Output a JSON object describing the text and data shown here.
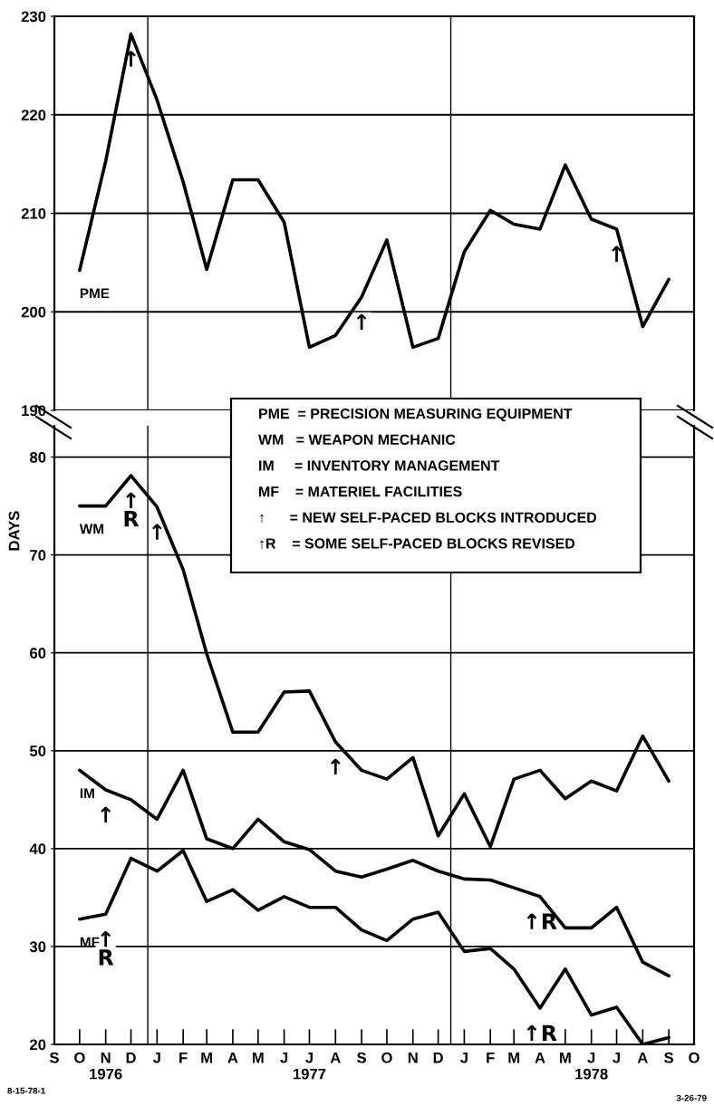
{
  "chart_data": [
    {
      "type": "line",
      "x": [
        "1976-10",
        "1976-11",
        "1976-12",
        "1977-01",
        "1977-02",
        "1977-03",
        "1977-04",
        "1977-05",
        "1977-06",
        "1977-07",
        "1977-08",
        "1977-09",
        "1977-10",
        "1977-11",
        "1977-12",
        "1978-01",
        "1978-02",
        "1978-03",
        "1978-04",
        "1978-05",
        "1978-06",
        "1978-07",
        "1978-08",
        "1978-09"
      ],
      "series": [
        {
          "name": "PME",
          "color": "#000000",
          "values": [
            204.2,
            215.3,
            228.2,
            221.5,
            213.2,
            204.3,
            213.4,
            213.4,
            209.1,
            196.4,
            197.6,
            201.5,
            207.3,
            196.4,
            197.3,
            206.1,
            210.3,
            208.9,
            208.4,
            214.9,
            209.4,
            208.4,
            198.5,
            203.3
          ]
        }
      ],
      "xlim": [
        "1976-09",
        "1978-10"
      ],
      "ylim": [
        190,
        230
      ],
      "yticks": [
        190,
        200,
        210,
        220,
        230
      ],
      "tick_labels": "y",
      "grid": "y",
      "ref_lines": [
        {
          "axis": "x",
          "value": "1976-12-21",
          "color": "#000000"
        },
        {
          "axis": "x",
          "value": "1977-12-16",
          "color": "#000000"
        }
      ],
      "annotations": [
        {
          "text": "↑",
          "x": "1976-12",
          "y": 228.2
        },
        {
          "text": "↑",
          "x": "1977-09",
          "y": 201.5
        },
        {
          "text": "↑",
          "x": "1978-07",
          "y": 208.4
        }
      ]
    },
    {
      "type": "line",
      "x": [
        "1976-10",
        "1976-11",
        "1976-12",
        "1977-01",
        "1977-02",
        "1977-03",
        "1977-04",
        "1977-05",
        "1977-06",
        "1977-07",
        "1977-08",
        "1977-09",
        "1977-10",
        "1977-11",
        "1977-12",
        "1978-01",
        "1978-02",
        "1978-03",
        "1978-04",
        "1978-05",
        "1978-06",
        "1978-07",
        "1978-08",
        "1978-09"
      ],
      "series": [
        {
          "name": "WM",
          "color": "#000000",
          "values": [
            75,
            75,
            78.1,
            74.9,
            68.5,
            59.9,
            51.9,
            51.9,
            56,
            56.1,
            50.9,
            48,
            47.1,
            49.3,
            41.3,
            45.6,
            40.2,
            47.1,
            48,
            45.1,
            46.9,
            45.9,
            51.5,
            46.9
          ]
        },
        {
          "name": "IM",
          "color": "#000000",
          "values": [
            48,
            46,
            45,
            43,
            48,
            41,
            40,
            43,
            40.7,
            39.9,
            37.7,
            37.1,
            37.9,
            38.8,
            37.7,
            36.9,
            36.8,
            36,
            35.1,
            31.9,
            31.9,
            34,
            28.4,
            27
          ]
        },
        {
          "name": "MF",
          "color": "#000000",
          "values": [
            32.8,
            33.3,
            39,
            37.7,
            39.8,
            34.6,
            35.8,
            33.7,
            35.1,
            34,
            34,
            31.7,
            30.6,
            32.8,
            33.5,
            29.5,
            29.8,
            27.7,
            23.7,
            27.7,
            23,
            23.8,
            20,
            20.7
          ]
        }
      ],
      "xlim": [
        "1976-09",
        "1978-10"
      ],
      "xticks": [
        {
          "value": "1976-09",
          "label": "S"
        },
        {
          "value": "1976-10",
          "label": "O"
        },
        {
          "value": "1976-11",
          "label": "N\n1976"
        },
        {
          "value": "1976-12",
          "label": "D"
        },
        {
          "value": "1977-01",
          "label": "J"
        },
        {
          "value": "1977-02",
          "label": "F"
        },
        {
          "value": "1977-03",
          "label": "M"
        },
        {
          "value": "1977-04",
          "label": "A"
        },
        {
          "value": "1977-05",
          "label": "M"
        },
        {
          "value": "1977-06",
          "label": "J"
        },
        {
          "value": "1977-07",
          "label": "J\n1977"
        },
        {
          "value": "1977-08",
          "label": "A"
        },
        {
          "value": "1977-09",
          "label": "S"
        },
        {
          "value": "1977-10",
          "label": "O"
        },
        {
          "value": "1977-11",
          "label": "N"
        },
        {
          "value": "1977-12",
          "label": "D"
        },
        {
          "value": "1978-01",
          "label": "J"
        },
        {
          "value": "1978-02",
          "label": "F"
        },
        {
          "value": "1978-03",
          "label": "M"
        },
        {
          "value": "1978-04",
          "label": "A"
        },
        {
          "value": "1978-05",
          "label": "M"
        },
        {
          "value": "1978-06",
          "label": "J\n1978"
        },
        {
          "value": "1978-07",
          "label": "J"
        },
        {
          "value": "1978-08",
          "label": "A"
        },
        {
          "value": "1978-09",
          "label": "S"
        },
        {
          "value": "1978-10",
          "label": "O"
        }
      ],
      "ylim": [
        20,
        83.2
      ],
      "yticks": [
        20,
        30,
        40,
        50,
        60,
        70,
        80
      ],
      "ylabel": "DAYS",
      "grid": "y",
      "ref_lines": [
        {
          "axis": "x",
          "value": "1976-12-21",
          "color": "#000000"
        },
        {
          "axis": "x",
          "value": "1977-12-16",
          "color": "#000000"
        }
      ],
      "annotations": [
        "PME  = PRECISION MEASURING EQUIPMENT",
        "WM   = WEAPON MECHANIC",
        "IM     = INVENTORY MANAGEMENT",
        "MF    = MATERIEL FACILITIES",
        "↑      = NEW SELF-PACED BLOCKS INTRODUCED",
        "↑R    = SOME SELF-PACED BLOCKS REVISED",
        "8-15-78-1",
        "3-26-79",
        {
          "text": "↑\nR",
          "x": "1976-12",
          "y": 78.1
        },
        {
          "text": "↑",
          "x": "1977-01",
          "y": 74.9
        },
        {
          "text": "↑",
          "x": "1977-08",
          "y": 50.9
        },
        {
          "text": "↑",
          "x": "1976-11",
          "y": 46
        },
        {
          "text": "↑\nR",
          "x": "1976-11",
          "y": 33.3
        },
        {
          "text": "↑R",
          "x": "1978-04",
          "y": 35.1
        },
        {
          "text": "↑R",
          "x": "1978-04",
          "y": 23.7
        }
      ]
    }
  ]
}
